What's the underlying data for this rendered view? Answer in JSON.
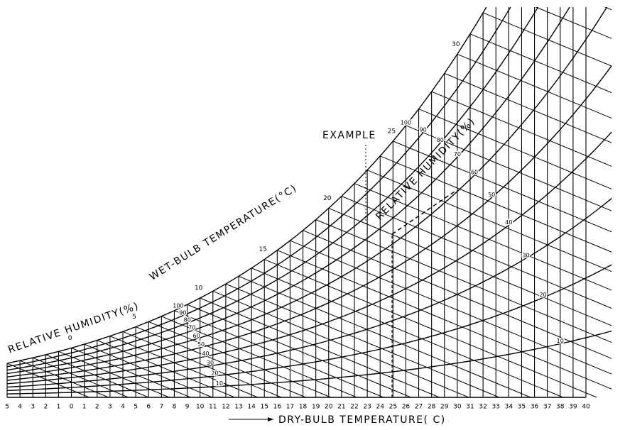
{
  "chart_data": {
    "type": "psychrometric",
    "xlabel": "DRY-BULB TEMPERATURE( C)",
    "xlim": [
      -5,
      40
    ],
    "xticks": [
      {
        "value": -5,
        "label": "5"
      },
      {
        "value": -4,
        "label": "4"
      },
      {
        "value": -3,
        "label": "3"
      },
      {
        "value": -2,
        "label": "2"
      },
      {
        "value": -1,
        "label": "1"
      },
      0,
      1,
      2,
      3,
      4,
      5,
      6,
      7,
      8,
      9,
      10,
      11,
      12,
      13,
      14,
      15,
      16,
      17,
      18,
      19,
      20,
      21,
      22,
      23,
      24,
      25,
      26,
      27,
      28,
      29,
      30,
      31,
      32,
      33,
      34,
      35,
      36,
      37,
      38,
      39,
      40
    ],
    "rh_label": "RELATIVE HUMIDITY(%)",
    "rh_values": [
      100,
      90,
      80,
      70,
      60,
      50,
      40,
      30,
      20,
      10
    ],
    "wet_bulb_label": "WET-BULB TEMPERATURE(°C)",
    "wet_bulb_ticks": [
      0,
      5,
      10,
      15,
      20,
      25,
      30
    ],
    "annotation": "EXAMPLE",
    "color": "#000000"
  }
}
